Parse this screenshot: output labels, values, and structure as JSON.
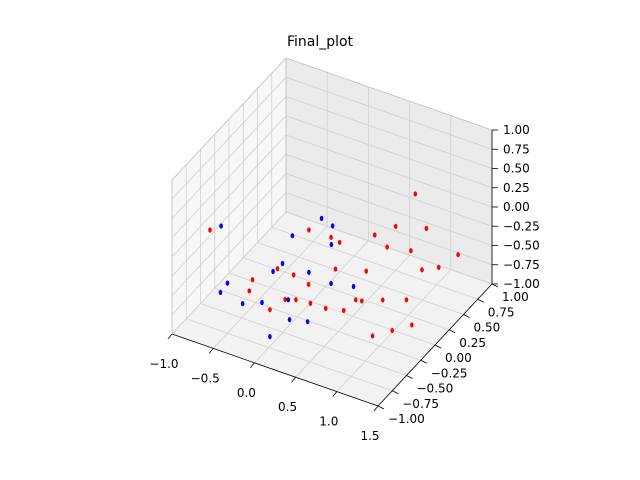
{
  "chart_data": {
    "type": "scatter",
    "projection": "3d",
    "title": "Final_plot",
    "xlabel": "",
    "ylabel": "",
    "zlabel": "",
    "xlim": [
      -1.0,
      1.5
    ],
    "ylim": [
      -1.0,
      1.0
    ],
    "zlim": [
      -1.0,
      1.0
    ],
    "x_ticks": [
      "−1.0",
      "−0.5",
      "0.0",
      "0.5",
      "1.0",
      "1.5"
    ],
    "y_ticks": [
      "−1.00",
      "−0.75",
      "−0.50",
      "−0.25",
      "0.00",
      "0.25",
      "0.50",
      "0.75",
      "1.00"
    ],
    "z_ticks": [
      "−1.00",
      "−0.75",
      "−0.50",
      "−0.25",
      "0.00",
      "0.25",
      "0.50",
      "0.75",
      "1.00"
    ],
    "grid": true,
    "legend": "none",
    "colors": {
      "series_a": "#ff0000",
      "series_b": "#0000ff"
    },
    "series": [
      {
        "color": "#ff0000",
        "points": [
          [
            0.35,
            -0.55,
            0.5
          ],
          [
            0.55,
            -0.45,
            0.4
          ],
          [
            0.62,
            -0.4,
            0.32
          ],
          [
            -0.85,
            -0.55,
            0.05
          ],
          [
            0.45,
            -0.7,
            -0.05
          ],
          [
            0.2,
            -0.6,
            -0.1
          ],
          [
            0.7,
            0.1,
            0.05
          ],
          [
            0.85,
            0.25,
            0.1
          ],
          [
            0.95,
            0.45,
            0.4
          ],
          [
            -0.1,
            -0.45,
            -0.25
          ],
          [
            -0.3,
            -0.6,
            -0.35
          ],
          [
            0.2,
            -0.75,
            -0.3
          ],
          [
            0.5,
            -0.3,
            -0.15
          ],
          [
            0.7,
            -0.05,
            -0.3
          ],
          [
            0.85,
            0.1,
            -0.05
          ],
          [
            1.0,
            0.3,
            -0.2
          ],
          [
            1.05,
            0.5,
            -0.05
          ],
          [
            1.4,
            0.55,
            -0.3
          ],
          [
            0.3,
            -0.45,
            -0.55
          ],
          [
            0.45,
            -0.4,
            -0.6
          ],
          [
            0.6,
            -0.3,
            -0.65
          ],
          [
            0.75,
            -0.2,
            -0.55
          ],
          [
            0.9,
            -0.05,
            -0.6
          ],
          [
            1.05,
            0.15,
            -0.7
          ],
          [
            1.1,
            0.35,
            -0.45
          ],
          [
            1.2,
            0.5,
            -0.5
          ],
          [
            0.95,
            -0.3,
            -0.85
          ],
          [
            1.05,
            -0.1,
            -0.9
          ],
          [
            1.15,
            0.1,
            -0.95
          ],
          [
            0.85,
            -0.45,
            -0.3
          ],
          [
            0.05,
            -0.8,
            -0.45
          ],
          [
            -0.2,
            -0.8,
            -0.3
          ],
          [
            0.4,
            -0.85,
            -0.15
          ]
        ]
      },
      {
        "color": "#0000ff",
        "points": [
          [
            0.4,
            -0.4,
            0.55
          ],
          [
            0.5,
            -0.35,
            0.45
          ],
          [
            0.15,
            -0.55,
            0.35
          ],
          [
            0.45,
            -0.3,
            0.15
          ],
          [
            -0.75,
            -0.5,
            0.1
          ],
          [
            0.1,
            -0.65,
            0.05
          ],
          [
            0.35,
            -0.55,
            -0.05
          ],
          [
            -0.05,
            -0.6,
            -0.15
          ],
          [
            -0.5,
            -0.75,
            -0.35
          ],
          [
            -0.55,
            -0.8,
            -0.45
          ],
          [
            -0.35,
            -0.7,
            -0.6
          ],
          [
            -0.15,
            -0.65,
            -0.55
          ],
          [
            0.1,
            -0.55,
            -0.5
          ],
          [
            0.65,
            -0.2,
            -0.4
          ],
          [
            0.05,
            -0.8,
            -0.8
          ],
          [
            0.3,
            -0.5,
            -0.75
          ],
          [
            0.15,
            -0.6,
            -0.7
          ],
          [
            0.55,
            -0.45,
            -0.2
          ]
        ]
      }
    ]
  }
}
